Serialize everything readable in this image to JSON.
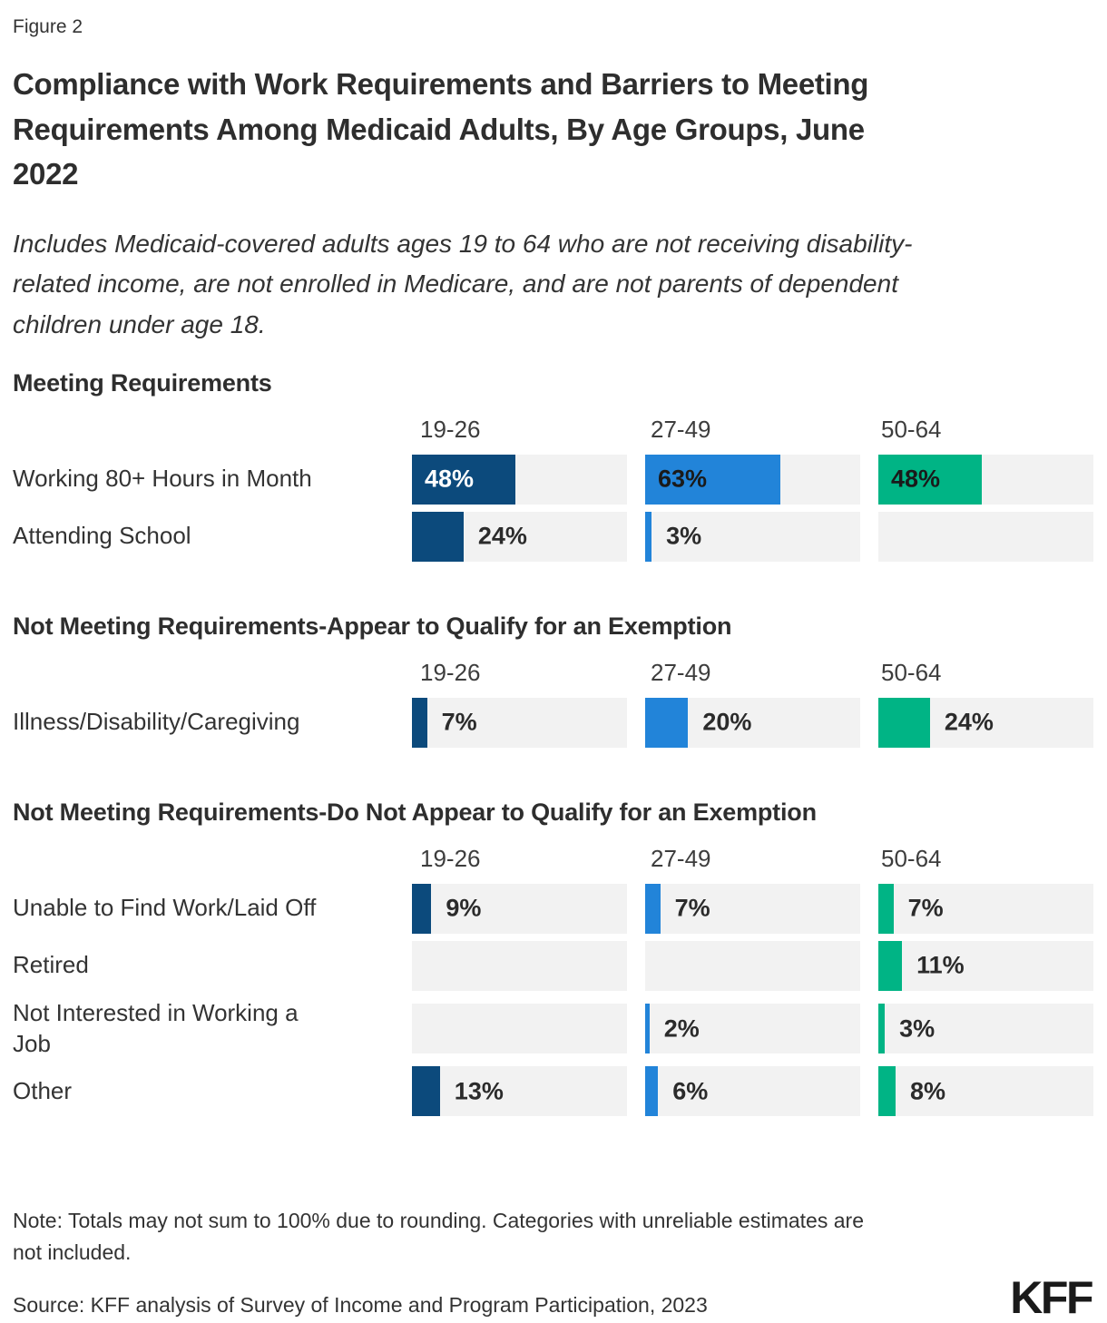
{
  "figure_label": "Figure 2",
  "title": "Compliance with Work Requirements and Barriers to Meeting\nRequirements Among Medicaid Adults, By Age Groups, June\n2022",
  "subtitle": "Includes Medicaid-covered adults ages 19 to 64 who are not receiving disability-\nrelated income, are not enrolled in Medicare, and are not parents of dependent\nchildren under age 18.",
  "note": "Note: Totals may not sum to 100% due to rounding. Categories with unreliable estimates are\nnot included.",
  "source": "Source: KFF analysis of Survey of Income and Program Participation, 2023",
  "logo": "KFF",
  "colors": {
    "age_19_26": "#0C4A7C",
    "age_27_49": "#2284D9",
    "age_50_64": "#00B485",
    "track": "#F2F2F2",
    "text": "#333333",
    "label_inside_dark_bar": "#FFFFFF",
    "label_inside_light_bar": "#1A1A1A",
    "label_outside": "#2B2B2B"
  },
  "chart_data": {
    "type": "bar",
    "orientation": "horizontal",
    "unit": "%",
    "xlim": [
      0,
      100
    ],
    "grid": false,
    "legend": "column headers per age group",
    "age_groups": [
      "19-26",
      "27-49",
      "50-64"
    ],
    "sections": [
      {
        "heading": "Meeting Requirements",
        "rows": [
          {
            "label": "Working 80+ Hours in Month",
            "values": [
              48,
              63,
              48
            ],
            "display": [
              "48%",
              "63%",
              "48%"
            ],
            "labels_inside": true
          },
          {
            "label": "Attending School",
            "values": [
              24,
              3,
              null
            ],
            "display": [
              "24%",
              "3%",
              null
            ],
            "labels_inside": false
          }
        ]
      },
      {
        "heading": "Not Meeting Requirements-Appear to Qualify for an Exemption",
        "rows": [
          {
            "label": "Illness/Disability/Caregiving",
            "values": [
              7,
              20,
              24
            ],
            "display": [
              "7%",
              "20%",
              "24%"
            ],
            "labels_inside": false
          }
        ]
      },
      {
        "heading": "Not Meeting Requirements-Do Not Appear to Qualify for an Exemption",
        "rows": [
          {
            "label": "Unable to Find Work/Laid Off",
            "values": [
              9,
              7,
              7
            ],
            "display": [
              "9%",
              "7%",
              "7%"
            ],
            "labels_inside": false
          },
          {
            "label": "Retired",
            "values": [
              null,
              null,
              11
            ],
            "display": [
              null,
              null,
              "11%"
            ],
            "labels_inside": false
          },
          {
            "label": "Not Interested in Working a\nJob",
            "values": [
              null,
              2,
              3
            ],
            "display": [
              null,
              "2%",
              "3%"
            ],
            "labels_inside": false
          },
          {
            "label": "Other",
            "values": [
              13,
              6,
              8
            ],
            "display": [
              "13%",
              "6%",
              "8%"
            ],
            "labels_inside": false
          }
        ]
      }
    ]
  }
}
